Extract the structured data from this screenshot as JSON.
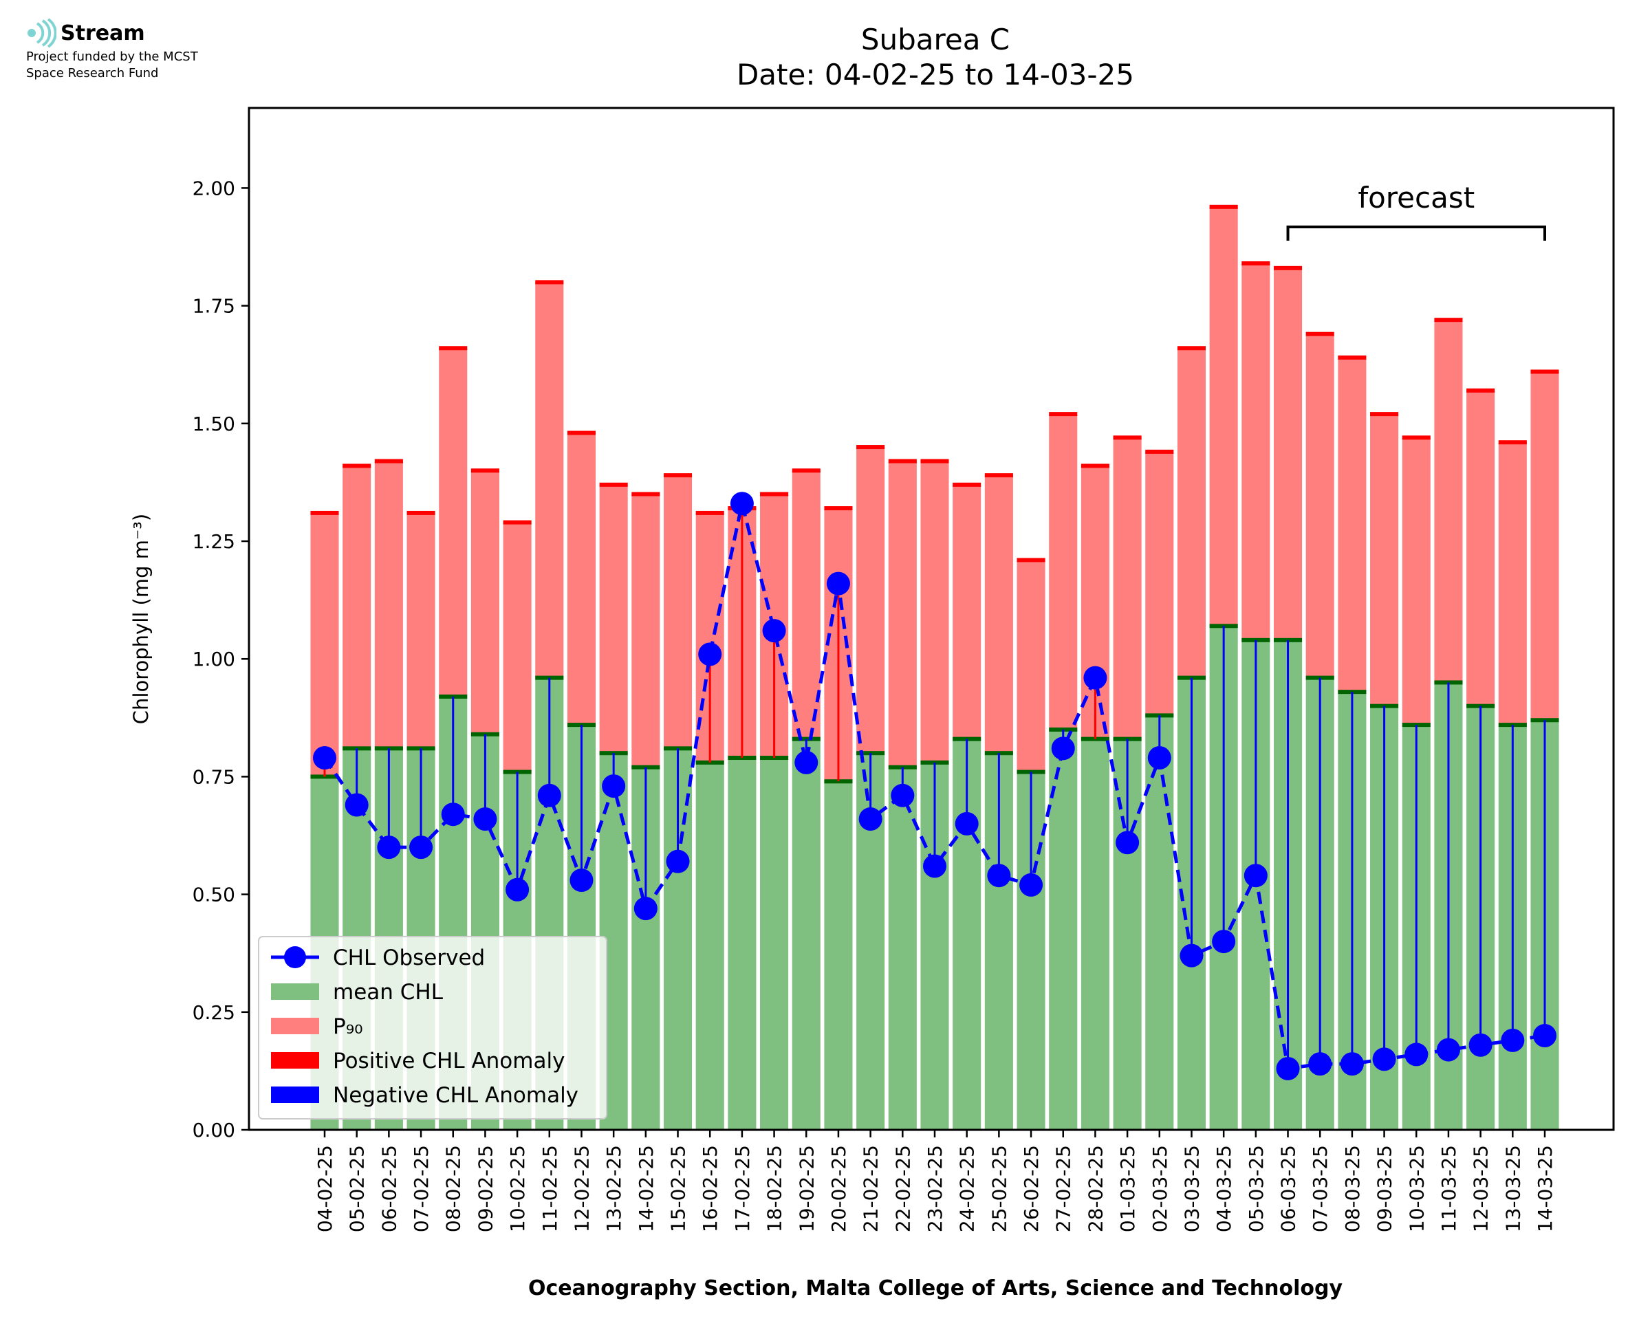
{
  "logo": {
    "name": "Stream",
    "line1": "Project funded by the MCST",
    "line2": "Space Research Fund"
  },
  "chart_data": {
    "type": "bar",
    "title": "Subarea C",
    "subtitle": "Date: 04-02-25 to 14-03-25",
    "xlabel": "Oceanography Section, Malta College of Arts, Science and Technology",
    "ylabel": "Chlorophyll (mg m⁻³)",
    "ylim": [
      0,
      2.17
    ],
    "yticks": [
      "0.00",
      "0.25",
      "0.50",
      "0.75",
      "1.00",
      "1.25",
      "1.50",
      "1.75",
      "2.00"
    ],
    "categories": [
      "04-02-25",
      "05-02-25",
      "06-02-25",
      "07-02-25",
      "08-02-25",
      "09-02-25",
      "10-02-25",
      "11-02-25",
      "12-02-25",
      "13-02-25",
      "14-02-25",
      "15-02-25",
      "16-02-25",
      "17-02-25",
      "18-02-25",
      "19-02-25",
      "20-02-25",
      "21-02-25",
      "22-02-25",
      "23-02-25",
      "24-02-25",
      "25-02-25",
      "26-02-25",
      "27-02-25",
      "28-02-25",
      "01-03-25",
      "02-03-25",
      "03-03-25",
      "04-03-25",
      "05-03-25",
      "06-03-25",
      "07-03-25",
      "08-03-25",
      "09-03-25",
      "10-03-25",
      "11-03-25",
      "12-03-25",
      "13-03-25",
      "14-03-25"
    ],
    "series": [
      {
        "name": "mean CHL",
        "color": "#7fbf7f",
        "values": [
          0.75,
          0.81,
          0.81,
          0.81,
          0.92,
          0.84,
          0.76,
          0.96,
          0.86,
          0.8,
          0.77,
          0.81,
          0.78,
          0.79,
          0.79,
          0.83,
          0.74,
          0.8,
          0.77,
          0.78,
          0.83,
          0.8,
          0.76,
          0.85,
          0.83,
          0.83,
          0.88,
          0.96,
          1.07,
          1.04,
          1.04,
          0.96,
          0.93,
          0.9,
          0.86,
          0.95,
          0.9,
          0.86,
          0.87
        ]
      },
      {
        "name": "P₉₀",
        "color": "#ff7f7f",
        "values": [
          1.31,
          1.41,
          1.42,
          1.31,
          1.66,
          1.4,
          1.29,
          1.8,
          1.48,
          1.37,
          1.35,
          1.39,
          1.31,
          1.32,
          1.35,
          1.4,
          1.32,
          1.45,
          1.42,
          1.42,
          1.37,
          1.39,
          1.21,
          1.52,
          1.41,
          1.47,
          1.44,
          1.66,
          1.96,
          1.84,
          1.83,
          1.69,
          1.64,
          1.52,
          1.47,
          1.72,
          1.57,
          1.46,
          1.61
        ]
      },
      {
        "name": "CHL Observed",
        "color": "#0000ff",
        "values": [
          0.79,
          0.69,
          0.6,
          0.6,
          0.67,
          0.66,
          0.51,
          0.71,
          0.53,
          0.73,
          0.47,
          0.57,
          1.01,
          1.33,
          1.06,
          0.78,
          1.16,
          0.66,
          0.71,
          0.56,
          0.65,
          0.54,
          0.52,
          0.81,
          0.96,
          0.61,
          0.79,
          0.37,
          0.4,
          0.54,
          0.13,
          0.14,
          0.14,
          0.15,
          0.16,
          0.17,
          0.18,
          0.19,
          0.2
        ]
      }
    ],
    "legend": {
      "position": "lower-left",
      "entries": [
        {
          "label": "CHL Observed",
          "kind": "line-marker",
          "color": "#0000ff"
        },
        {
          "label": "mean CHL",
          "kind": "patch",
          "color": "#7fbf7f"
        },
        {
          "label": "P₉₀",
          "kind": "patch",
          "color": "#ff7f7f"
        },
        {
          "label": "Positive CHL Anomaly",
          "kind": "patch",
          "color": "#ff0000"
        },
        {
          "label": "Negative CHL Anomaly",
          "kind": "patch",
          "color": "#0000ff"
        }
      ]
    },
    "annotation": {
      "text": "forecast",
      "from": "06-03-25",
      "to": "14-03-25"
    },
    "colors": {
      "positive_anomaly": "#ff0000",
      "negative_anomaly": "#0000ff",
      "mean_cap": "#006400",
      "p90_cap": "#ff0000"
    }
  }
}
